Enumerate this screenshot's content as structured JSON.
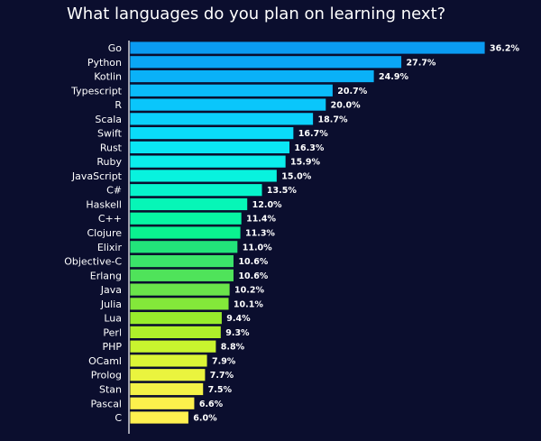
{
  "chart_data": {
    "type": "bar",
    "orientation": "horizontal",
    "title": "What languages do you plan on learning next?",
    "xlabel": "",
    "ylabel": "",
    "value_suffix": "%",
    "xlim": [
      0,
      36.2
    ],
    "grid": false,
    "legend": "none",
    "categories": [
      "Go",
      "Python",
      "Kotlin",
      "Typescript",
      "R",
      "Scala",
      "Swift",
      "Rust",
      "Ruby",
      "JavaScript",
      "C#",
      "Haskell",
      "C++",
      "Clojure",
      "Elixir",
      "Objective-C",
      "Erlang",
      "Java",
      "Julia",
      "Lua",
      "Perl",
      "PHP",
      "OCaml",
      "Prolog",
      "Stan",
      "Pascal",
      "C"
    ],
    "values": [
      36.2,
      27.7,
      24.9,
      20.7,
      20.0,
      18.7,
      16.7,
      16.3,
      15.9,
      15.0,
      13.5,
      12.0,
      11.4,
      11.3,
      11.0,
      10.6,
      10.6,
      10.2,
      10.1,
      9.4,
      9.3,
      8.8,
      7.9,
      7.7,
      7.5,
      6.6,
      6.0
    ],
    "value_labels": [
      "36.2%",
      "27.7%",
      "24.9%",
      "20.7%",
      "20.0%",
      "18.7%",
      "16.7%",
      "16.3%",
      "15.9%",
      "15.0%",
      "13.5%",
      "12.0%",
      "11.4%",
      "11.3%",
      "11.0%",
      "10.6%",
      "10.6%",
      "10.2%",
      "10.1%",
      "9.4%",
      "9.3%",
      "8.8%",
      "7.9%",
      "7.7%",
      "7.5%",
      "6.6%",
      "6.0%"
    ],
    "bar_colors": [
      "#0a9bf2",
      "#0aa6f6",
      "#0ab1f8",
      "#0abbfa",
      "#0ac6fb",
      "#0ad1fc",
      "#0adcfa",
      "#0ae6f5",
      "#0aeeec",
      "#08f2de",
      "#06f5cc",
      "#06f6b7",
      "#07f5a3",
      "#0af290",
      "#22e47a",
      "#3be46a",
      "#4fe35a",
      "#6ae44a",
      "#83e83a",
      "#98ec2c",
      "#aff02a",
      "#c8f42e",
      "#dcf536",
      "#eaf43e",
      "#f4f247",
      "#fcf04c",
      "#fff04f"
    ],
    "background_color": "#0b0e2e",
    "axis_color": "#ffffff",
    "text_color": "#ffffff"
  }
}
